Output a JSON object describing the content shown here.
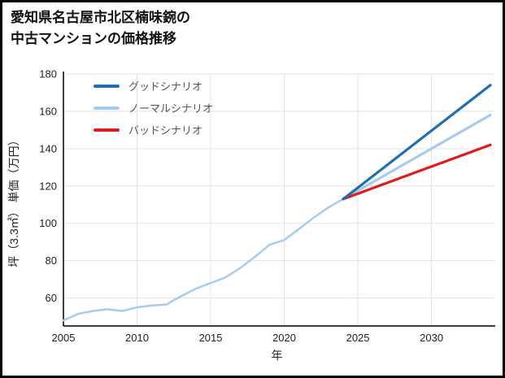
{
  "title": {
    "line1": "愛知県名古屋市北区楠味鋺の",
    "line2": "中古マンションの価格推移"
  },
  "axes": {
    "x_label": "年",
    "y_label": "坪（3.3㎡） 単価（万円）"
  },
  "chart_data": {
    "type": "line",
    "title": "愛知県名古屋市北区楠味鋺の中古マンションの価格推移",
    "xlabel": "年",
    "ylabel": "坪（3.3㎡）単価（万円）",
    "xlim": [
      2005,
      2034
    ],
    "ylim": [
      45,
      180
    ],
    "xticks": [
      2005,
      2010,
      2015,
      2020,
      2025,
      2030
    ],
    "yticks": [
      60,
      80,
      100,
      120,
      140,
      160,
      180
    ],
    "grid": true,
    "legend_position": "top-left",
    "colors": {
      "grid": "#e3e3e3",
      "axis": "#000000",
      "tick_text": "#222222"
    },
    "series": [
      {
        "name": "",
        "legend": false,
        "color": "#a6cbee",
        "width": 2.5,
        "x": [
          2005,
          2006,
          2007,
          2008,
          2009,
          2010,
          2011,
          2012,
          2013,
          2014,
          2015,
          2016,
          2017,
          2018,
          2019,
          2020,
          2021,
          2022,
          2023,
          2024
        ],
        "y": [
          48,
          51.5,
          53,
          54,
          53,
          55,
          56,
          56.5,
          61,
          65,
          68,
          71,
          76,
          82,
          88.5,
          91,
          97,
          103,
          108.5,
          113
        ]
      },
      {
        "name": "グッドシナリオ",
        "legend": true,
        "color": "#1f6eb4",
        "width": 3.2,
        "x": [
          2024,
          2034
        ],
        "y": [
          113,
          174
        ]
      },
      {
        "name": "ノーマルシナリオ",
        "legend": true,
        "color": "#a6cbee",
        "width": 3.2,
        "x": [
          2024,
          2034
        ],
        "y": [
          113,
          158
        ]
      },
      {
        "name": "バッドシナリオ",
        "legend": true,
        "color": "#e01b1b",
        "width": 3.2,
        "x": [
          2024,
          2034
        ],
        "y": [
          113,
          142
        ]
      }
    ]
  }
}
